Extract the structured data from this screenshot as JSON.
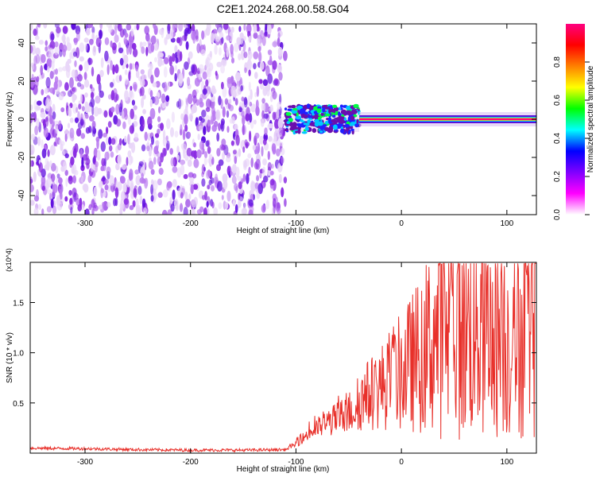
{
  "title": "C2E1.2024.268.00.58.G04",
  "chart_data": [
    {
      "type": "heatmap",
      "xlabel": "Height of straight line (km)",
      "ylabel": "Frequency (Hz)",
      "xlim": [
        -352,
        128
      ],
      "ylim": [
        -50,
        50
      ],
      "xticks": [
        -300,
        -200,
        -100,
        0,
        100
      ],
      "yticks": [
        -40,
        -20,
        0,
        20,
        40
      ],
      "colorbar": {
        "label": "Normalized spectral amplitude",
        "range": [
          0.0,
          1.0
        ],
        "ticks": [
          0.0,
          0.2,
          0.4,
          0.6,
          0.8
        ],
        "colormap": [
          "#ffffff",
          "#ff00ff",
          "#8000ff",
          "#0000ff",
          "#00ffff",
          "#00ff00",
          "#ffff00",
          "#ff8000",
          "#ff0000",
          "#ff0080"
        ]
      },
      "regions": [
        {
          "x": [
            -352,
            -110
          ],
          "freq_spread": [
            -50,
            50
          ],
          "amplitude": 0.1
        },
        {
          "x": [
            -110,
            -40
          ],
          "freq_spread": [
            -6,
            8
          ],
          "amplitude": 0.45
        },
        {
          "x": [
            -40,
            128
          ],
          "freq_spread": [
            -1,
            1
          ],
          "amplitude": 0.95
        }
      ],
      "grid": false
    },
    {
      "type": "line",
      "xlabel": "Height of straight line (km)",
      "ylabel": "SNR (10 * v/v)",
      "y_multiplier": "(x10^4)",
      "xlim": [
        -352,
        128
      ],
      "ylim": [
        0,
        19000
      ],
      "xticks": [
        -300,
        -200,
        -100,
        0,
        100
      ],
      "yticks": [
        0.5,
        1.0,
        1.5
      ],
      "series": [
        {
          "color": "#e8302a",
          "x": [
            -352,
            -300,
            -250,
            -200,
            -150,
            -110,
            -100,
            -90,
            -80,
            -70,
            -60,
            -50,
            -40,
            -30,
            -20,
            -10,
            0,
            10,
            20,
            30,
            40,
            50,
            60,
            70,
            80,
            90,
            100,
            110,
            120,
            128
          ],
          "y": [
            500,
            450,
            350,
            300,
            300,
            350,
            900,
            1800,
            2500,
            3000,
            3500,
            4000,
            5000,
            6000,
            6500,
            7500,
            8000,
            9000,
            10000,
            11500,
            12000,
            12500,
            12000,
            12500,
            11500,
            12000,
            11000,
            11500,
            12000,
            14000
          ]
        }
      ],
      "grid": false
    }
  ]
}
